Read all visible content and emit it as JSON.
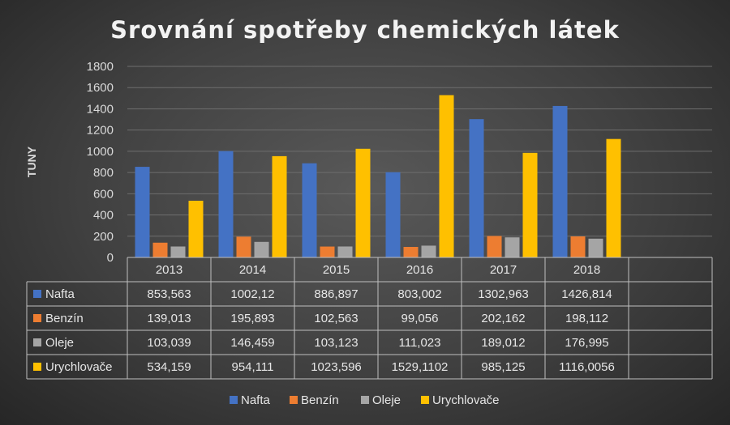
{
  "chart_data": {
    "type": "bar",
    "title": "Srovnání spotřeby chemických látek",
    "ylabel": "TUNY",
    "xlabel": "",
    "ylim": [
      0,
      1800
    ],
    "yticks": [
      "0",
      "200",
      "400",
      "600",
      "800",
      "1000",
      "1200",
      "1400",
      "1600",
      "1800"
    ],
    "grid": true,
    "legend_position": "bottom",
    "categories": [
      "2013",
      "2014",
      "2015",
      "2016",
      "2017",
      "2018"
    ],
    "series": [
      {
        "name": "Nafta",
        "color": "#4472c4",
        "values": [
          853.563,
          1002.12,
          886.897,
          803.002,
          1302.963,
          1426.814
        ],
        "labels": [
          "853,563",
          "1002,12",
          "886,897",
          "803,002",
          "1302,963",
          "1426,814"
        ]
      },
      {
        "name": "Benzín",
        "color": "#ed7d31",
        "values": [
          139.013,
          195.893,
          102.563,
          99.056,
          202.162,
          198.112
        ],
        "labels": [
          "139,013",
          "195,893",
          "102,563",
          "99,056",
          "202,162",
          "198,112"
        ]
      },
      {
        "name": "Oleje",
        "color": "#a5a5a5",
        "values": [
          103.039,
          146.459,
          103.123,
          111.023,
          189.012,
          176.995
        ],
        "labels": [
          "103,039",
          "146,459",
          "103,123",
          "111,023",
          "189,012",
          "176,995"
        ]
      },
      {
        "name": "Urychlovače",
        "color": "#ffc000",
        "values": [
          534.159,
          954.111,
          1023.596,
          1529.1102,
          985.125,
          1116.0056
        ],
        "labels": [
          "534,159",
          "954,111",
          "1023,596",
          "1529,1102",
          "985,125",
          "1116,0056"
        ]
      }
    ]
  }
}
